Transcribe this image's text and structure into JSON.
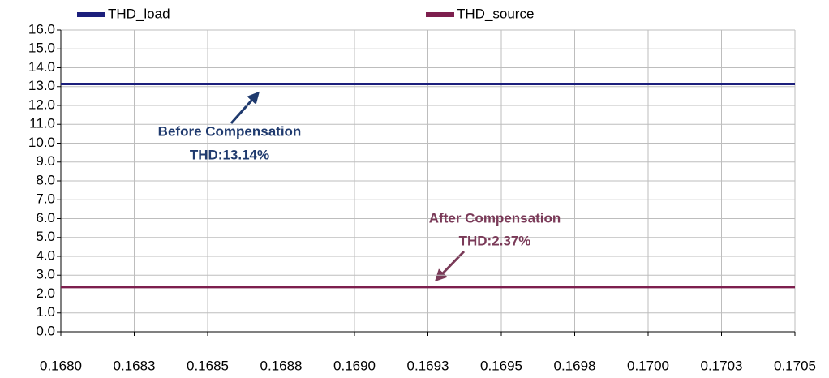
{
  "chart_data": {
    "type": "line",
    "x": [
      0.168,
      0.1705
    ],
    "series": [
      {
        "name": "THD_load",
        "color": "#1c1f7c",
        "values": [
          13.14,
          13.14
        ]
      },
      {
        "name": "THD_source",
        "color": "#7d1f4e",
        "values": [
          2.37,
          2.37
        ]
      }
    ],
    "annotations": [
      "Before Compensation",
      "THD:13.14%",
      "After Compensation",
      "THD:2.37%"
    ],
    "annotation_colors": [
      "#1f3a6e",
      "#1f3a6e",
      "#7a3a58",
      "#7a3a58"
    ],
    "xlim": [
      0.168,
      0.1705
    ],
    "xticks": [
      {
        "value": 0.168,
        "label": "0.1680"
      },
      {
        "value": 0.16825,
        "label": "0.1683"
      },
      {
        "value": 0.1685,
        "label": "0.1685"
      },
      {
        "value": 0.16875,
        "label": "0.1688"
      },
      {
        "value": 0.169,
        "label": "0.1690"
      },
      {
        "value": 0.16925,
        "label": "0.1693"
      },
      {
        "value": 0.1695,
        "label": "0.1695"
      },
      {
        "value": 0.16975,
        "label": "0.1698"
      },
      {
        "value": 0.17,
        "label": "0.1700"
      },
      {
        "value": 0.17025,
        "label": "0.1703"
      },
      {
        "value": 0.1705,
        "label": "0.1705"
      }
    ],
    "ylim": [
      0,
      16
    ],
    "yticks": [
      {
        "value": 0,
        "label": "0.0"
      },
      {
        "value": 1,
        "label": "1.0"
      },
      {
        "value": 2,
        "label": "2.0"
      },
      {
        "value": 3,
        "label": "3.0"
      },
      {
        "value": 4,
        "label": "4.0"
      },
      {
        "value": 5,
        "label": "5.0"
      },
      {
        "value": 6,
        "label": "6.0"
      },
      {
        "value": 7,
        "label": "7.0"
      },
      {
        "value": 8,
        "label": "8.0"
      },
      {
        "value": 9,
        "label": "9.0"
      },
      {
        "value": 10,
        "label": "10.0"
      },
      {
        "value": 11,
        "label": "11.0"
      },
      {
        "value": 12,
        "label": "12.0"
      },
      {
        "value": 13,
        "label": "13.0"
      },
      {
        "value": 14,
        "label": "14.0"
      },
      {
        "value": 15,
        "label": "15.0"
      },
      {
        "value": 16,
        "label": "16.0"
      }
    ],
    "grid": true
  }
}
